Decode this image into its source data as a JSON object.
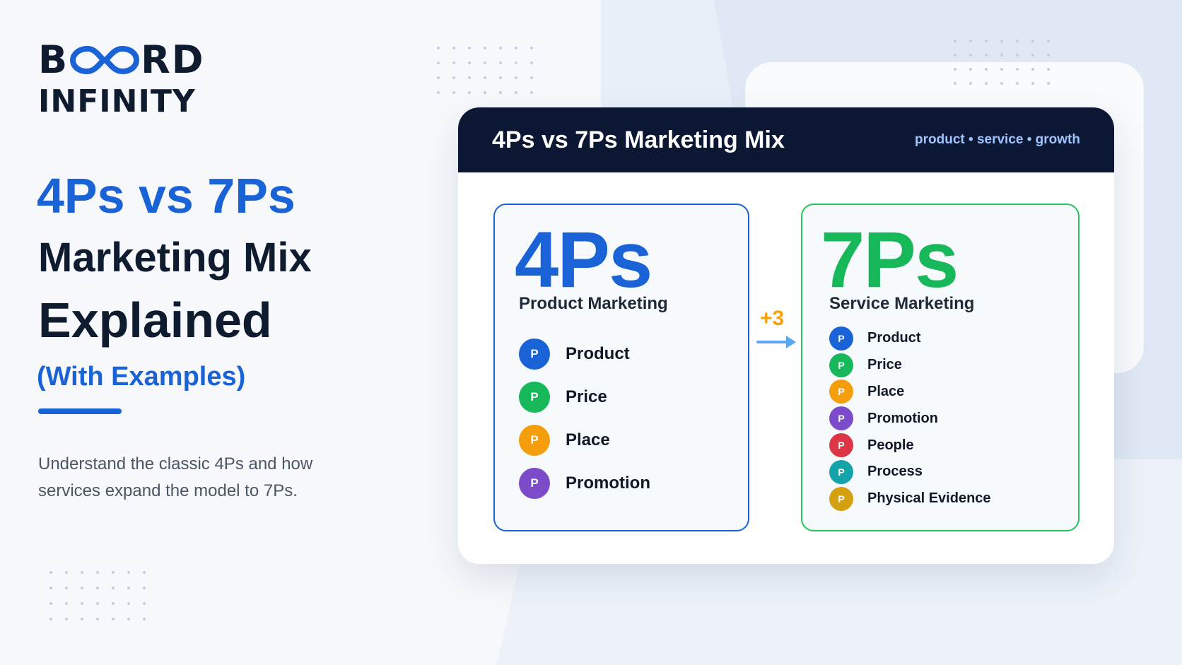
{
  "brand": {
    "word_start": "B",
    "word_end": "RD",
    "line2": "INFINITY",
    "logo_color": "#1a63d6"
  },
  "hero": {
    "title_blue": "4Ps vs 7Ps",
    "title_line2": "Marketing Mix",
    "title_line3": "Explained",
    "subtitle": "(With Examples)",
    "description": "Understand the classic 4Ps and how services expand the model to 7Ps."
  },
  "card": {
    "title": "4Ps vs 7Ps Marketing Mix",
    "tagline": "product • service • growth",
    "header_color": "#0b1733"
  },
  "four_ps": {
    "big": "4Ps",
    "subtitle": "Product Marketing",
    "accent": "#1a63d6",
    "items": [
      {
        "letter": "P",
        "label": "Product",
        "color": "#1a63d6"
      },
      {
        "letter": "P",
        "label": "Price",
        "color": "#16b85a"
      },
      {
        "letter": "P",
        "label": "Place",
        "color": "#f59e0b"
      },
      {
        "letter": "P",
        "label": "Promotion",
        "color": "#7c4bc9"
      }
    ]
  },
  "bridge": {
    "label": "+3",
    "arrow_icon": "arrow-right-icon"
  },
  "seven_ps": {
    "big": "7Ps",
    "subtitle": "Service Marketing",
    "accent": "#16b85a",
    "items": [
      {
        "letter": "P",
        "label": "Product",
        "color": "#1a63d6"
      },
      {
        "letter": "P",
        "label": "Price",
        "color": "#16b85a"
      },
      {
        "letter": "P",
        "label": "Place",
        "color": "#f59e0b"
      },
      {
        "letter": "P",
        "label": "Promotion",
        "color": "#7c4bc9"
      },
      {
        "letter": "P",
        "label": "People",
        "color": "#dc3545"
      },
      {
        "letter": "P",
        "label": "Process",
        "color": "#14a3a8"
      },
      {
        "letter": "P",
        "label": "Physical Evidence",
        "color": "#d4a00f"
      }
    ]
  }
}
